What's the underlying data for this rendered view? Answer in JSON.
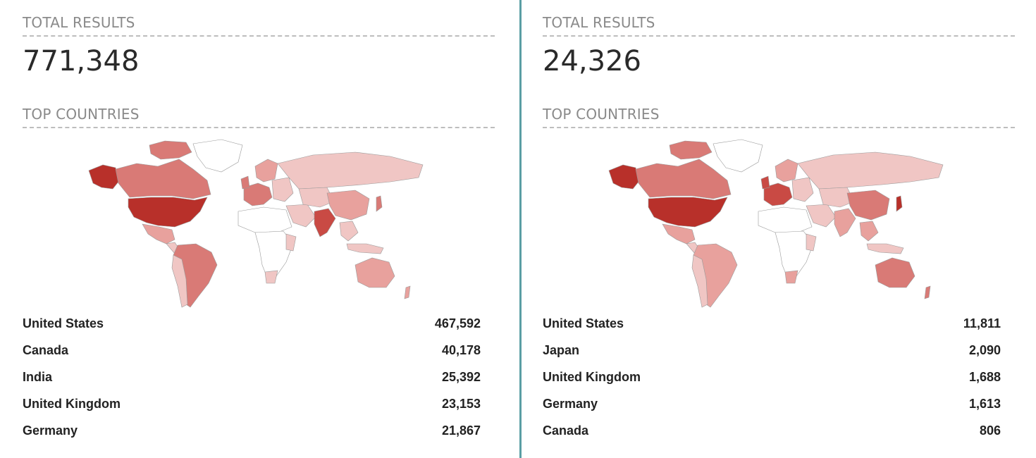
{
  "left": {
    "total_label": "TOTAL RESULTS",
    "total_value": "771,348",
    "countries_label": "TOP COUNTRIES",
    "countries": [
      {
        "name": "United States",
        "count": "467,592"
      },
      {
        "name": "Canada",
        "count": "40,178"
      },
      {
        "name": "India",
        "count": "25,392"
      },
      {
        "name": "United Kingdom",
        "count": "23,153"
      },
      {
        "name": "Germany",
        "count": "21,867"
      }
    ]
  },
  "right": {
    "total_label": "TOTAL RESULTS",
    "total_value": "24,326",
    "countries_label": "TOP COUNTRIES",
    "countries": [
      {
        "name": "United States",
        "count": "11,811"
      },
      {
        "name": "Japan",
        "count": "2,090"
      },
      {
        "name": "United Kingdom",
        "count": "1,688"
      },
      {
        "name": "Germany",
        "count": "1,613"
      },
      {
        "name": "Canada",
        "count": "806"
      }
    ]
  },
  "colors": {
    "divider": "#5a9ea4",
    "choropleth_high": "#b8302a",
    "choropleth_mid": "#d97a76",
    "choropleth_low": "#f0c6c4",
    "no_data": "#ffffff"
  }
}
